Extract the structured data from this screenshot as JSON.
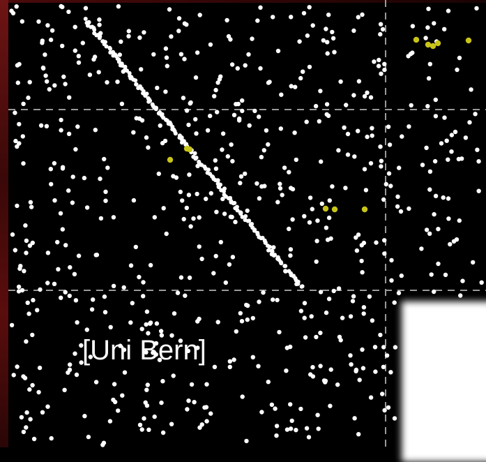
{
  "caption": "[Uni Bern]",
  "colors": {
    "background": "#000000",
    "dot": "#ffffff",
    "highlight_dot": "#c8c41a",
    "grid": "#9a9a9a",
    "frame": "#5a0d0d"
  }
}
